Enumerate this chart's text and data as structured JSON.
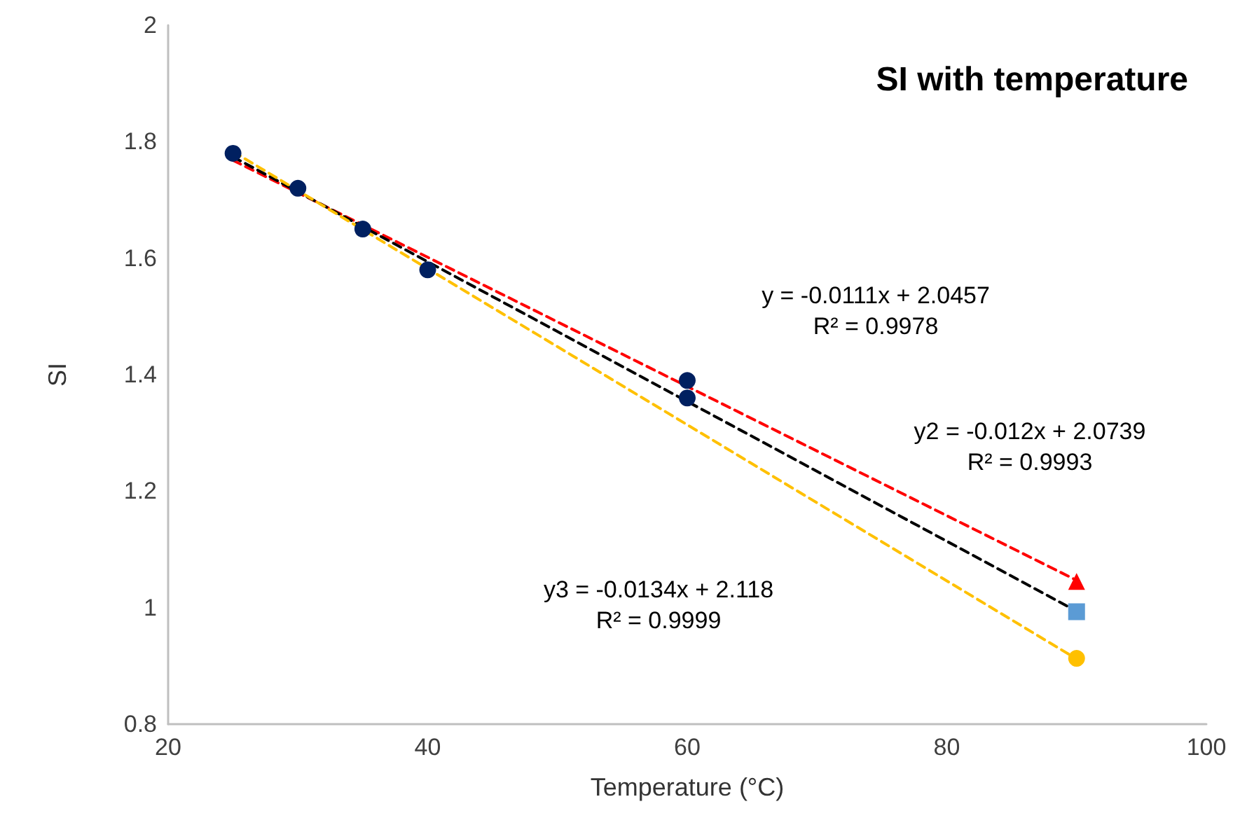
{
  "chart_data": {
    "type": "scatter",
    "title": "SI with temperature",
    "xlabel": "Temperature (°C)",
    "ylabel": "SI",
    "xlim": [
      20,
      100
    ],
    "xticks": [
      20,
      40,
      60,
      80,
      100
    ],
    "ylim": [
      0.8,
      2
    ],
    "yticks": [
      0.8,
      1,
      1.2,
      1.4,
      1.6,
      1.8,
      2
    ],
    "grid": false,
    "series": [
      {
        "type": "line",
        "color": "#ff0000",
        "x": [
          25,
          90
        ],
        "values": [
          1.768,
          1.047
        ],
        "marker": "none",
        "line_style": "dashed"
      },
      {
        "type": "line",
        "color": "#000000",
        "x": [
          25,
          90
        ],
        "values": [
          1.774,
          0.994
        ],
        "marker": "none",
        "line_style": "dashed"
      },
      {
        "type": "line",
        "color": "#ffc000",
        "x": [
          25,
          90
        ],
        "values": [
          1.783,
          0.912
        ],
        "marker": "none",
        "line_style": "dashed"
      },
      {
        "color": "#002060",
        "x": [
          25,
          30,
          35,
          40,
          60,
          60
        ],
        "values": [
          1.78,
          1.72,
          1.65,
          1.58,
          1.39,
          1.36
        ],
        "marker": "circle"
      },
      {
        "color": "#ff0000",
        "x": [
          90
        ],
        "values": [
          1.045
        ],
        "marker": "triangle"
      },
      {
        "color": "#5b9bd5",
        "x": [
          90
        ],
        "values": [
          0.993
        ],
        "marker": "square"
      },
      {
        "color": "#ffc000",
        "x": [
          90
        ],
        "values": [
          0.913
        ],
        "marker": "circle"
      }
    ],
    "annotations": [
      "y = -0.0111x + 2.0457\nR² = 0.9978",
      "y2 = -0.012x + 2.0739\nR² = 0.9993",
      "y3 = -0.0134x + 2.118\nR² = 0.9999"
    ]
  }
}
